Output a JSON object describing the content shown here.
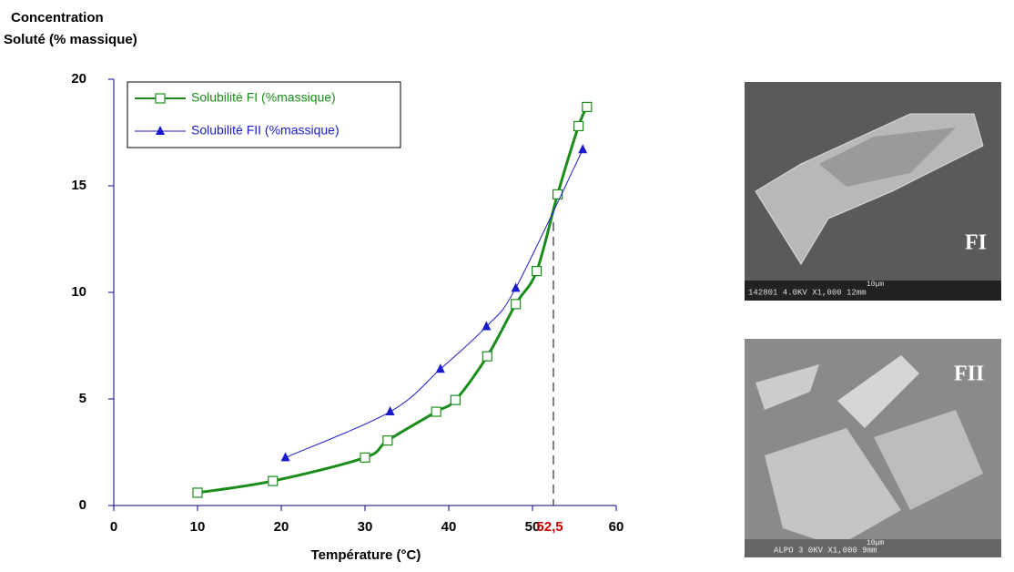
{
  "chart_data": {
    "type": "scatter",
    "y_label_lines": [
      "Concentration",
      "Soluté (% massique)"
    ],
    "x_label": "Température (°C)",
    "xlim": [
      0,
      60
    ],
    "xticks": [
      0,
      10,
      20,
      30,
      40,
      50,
      60
    ],
    "ylim": [
      0,
      20
    ],
    "yticks": [
      0,
      5,
      10,
      15,
      20
    ],
    "legend": "top-left",
    "series": [
      {
        "name": "Solubilité FI (%massique)",
        "color": "#1a8c1a",
        "marker": "square",
        "x": [
          10,
          19,
          30,
          32.7,
          38.5,
          40.8,
          44.6,
          48,
          50.5,
          53,
          55.5,
          56.5
        ],
        "values": [
          0.6,
          1.15,
          2.25,
          3.05,
          4.4,
          4.95,
          7.0,
          9.45,
          11.0,
          14.6,
          17.8,
          18.7
        ]
      },
      {
        "name": "Solubilité FII (%massique)",
        "color": "#1a1acc",
        "marker": "triangle",
        "x": [
          20.5,
          33,
          39,
          44.5,
          48,
          56
        ],
        "values": [
          2.25,
          4.4,
          6.4,
          8.4,
          10.2,
          16.7
        ]
      }
    ],
    "annotation": {
      "value": 52.5,
      "label": "52,5",
      "y": 13.3
    }
  },
  "images": [
    {
      "label": "FI",
      "caption": "142801 4.0KV  X1,000  12mm",
      "scale": "10µm"
    },
    {
      "label": "FII",
      "caption": "ALPO 3 0KV  X1,000   9mm",
      "scale": "10µm"
    }
  ]
}
